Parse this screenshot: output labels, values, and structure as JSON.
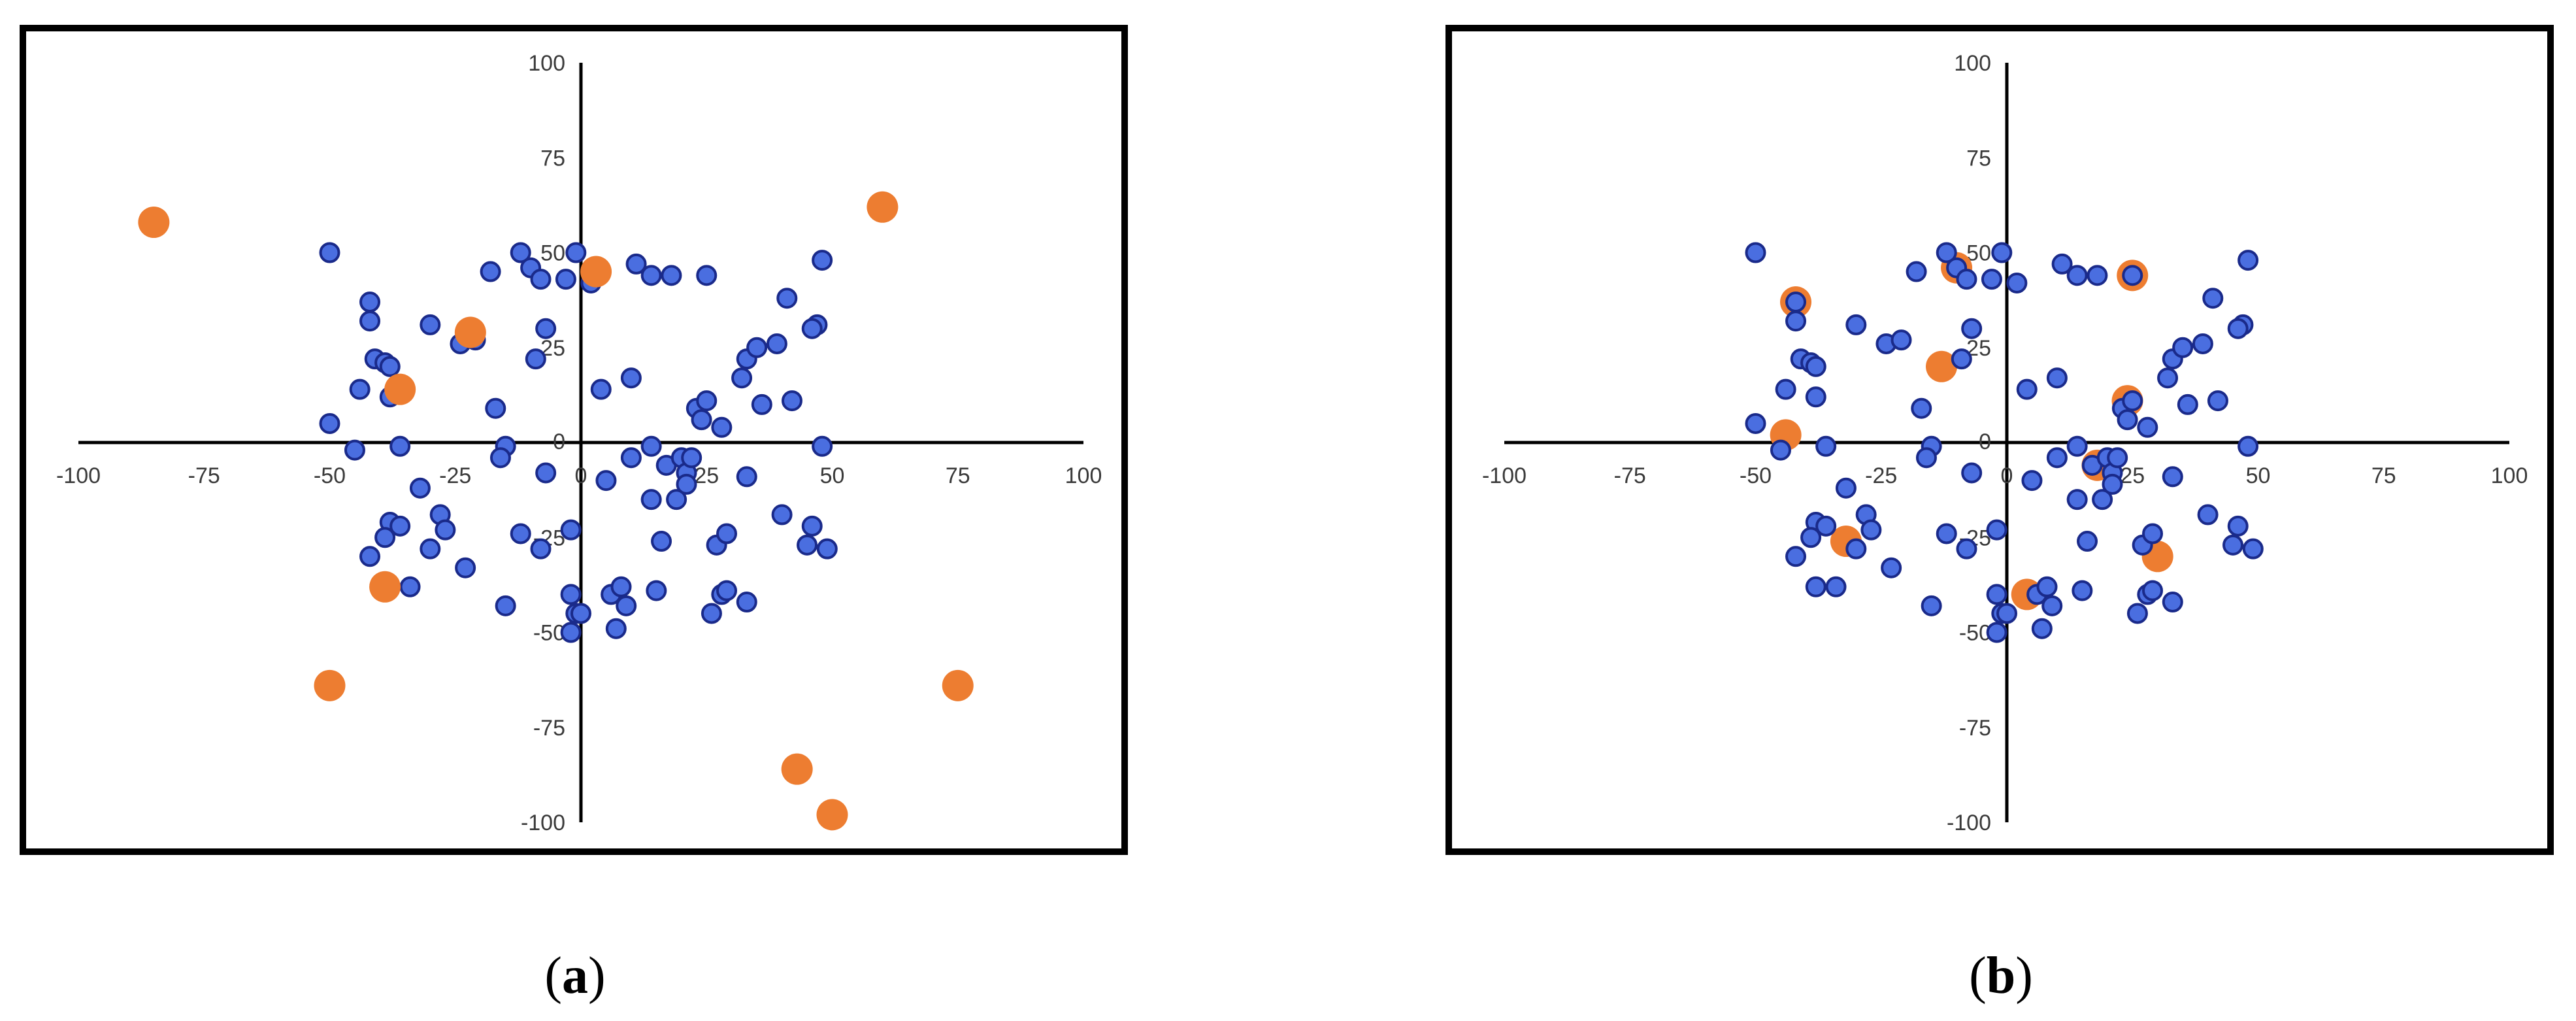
{
  "colors": {
    "blue_fill": "#4a6ee0",
    "blue_stroke": "#1a2a8a",
    "orange": "#ed7d31",
    "axis": "#000000"
  },
  "captions": {
    "a_open": "(",
    "a_letter": "a",
    "a_close": ")",
    "b_open": "(",
    "b_letter": "b",
    "b_close": ")"
  },
  "chart_data": [
    {
      "type": "scatter",
      "title": "",
      "xlabel": "",
      "ylabel": "",
      "xlim": [
        -100,
        100
      ],
      "ylim": [
        -100,
        100
      ],
      "x_ticks": [
        "-100",
        "-75",
        "-50",
        "-25",
        "0",
        "25",
        "50",
        "75",
        "100"
      ],
      "y_ticks": [
        "100",
        "75",
        "50",
        "25",
        "0",
        "-25",
        "-50",
        "-75",
        "-100"
      ],
      "grid": false,
      "series": [
        {
          "points": [
            [
              -50,
              50
            ],
            [
              -42,
              37
            ],
            [
              -42,
              32
            ],
            [
              -41,
              22
            ],
            [
              -39,
              21
            ],
            [
              -38,
              20
            ],
            [
              -44,
              14
            ],
            [
              -38,
              12
            ],
            [
              -36,
              -1
            ],
            [
              -50,
              5
            ],
            [
              -45,
              -2
            ],
            [
              -30,
              31
            ],
            [
              -24,
              26
            ],
            [
              -21,
              27
            ],
            [
              -18,
              45
            ],
            [
              -12,
              50
            ],
            [
              -10,
              46
            ],
            [
              -8,
              43
            ],
            [
              -7,
              30
            ],
            [
              -9,
              22
            ],
            [
              -17,
              9
            ],
            [
              -15,
              -1
            ],
            [
              -16,
              -4
            ],
            [
              -32,
              -12
            ],
            [
              -38,
              -21
            ],
            [
              -36,
              -22
            ],
            [
              -39,
              -25
            ],
            [
              -42,
              -30
            ],
            [
              -28,
              -19
            ],
            [
              -27,
              -23
            ],
            [
              -30,
              -28
            ],
            [
              -23,
              -33
            ],
            [
              -12,
              -24
            ],
            [
              -8,
              -28
            ],
            [
              -38,
              -38
            ],
            [
              -34,
              -38
            ],
            [
              -15,
              -43
            ],
            [
              -3,
              43
            ],
            [
              -1,
              50
            ],
            [
              2,
              42
            ],
            [
              11,
              47
            ],
            [
              14,
              44
            ],
            [
              18,
              44
            ],
            [
              25,
              44
            ],
            [
              4,
              14
            ],
            [
              10,
              17
            ],
            [
              -7,
              -8
            ],
            [
              5,
              -10
            ],
            [
              10,
              -4
            ],
            [
              14,
              -1
            ],
            [
              14,
              -15
            ],
            [
              17,
              -6
            ],
            [
              19,
              -15
            ],
            [
              20,
              -4
            ],
            [
              21,
              -8
            ],
            [
              22,
              -4
            ],
            [
              21,
              -11
            ],
            [
              23,
              9
            ],
            [
              25,
              11
            ],
            [
              24,
              6
            ],
            [
              28,
              4
            ],
            [
              16,
              -26
            ],
            [
              27,
              -27
            ],
            [
              29,
              -24
            ],
            [
              33,
              -9
            ],
            [
              32,
              17
            ],
            [
              33,
              22
            ],
            [
              35,
              25
            ],
            [
              36,
              10
            ],
            [
              39,
              26
            ],
            [
              40,
              -19
            ],
            [
              42,
              11
            ],
            [
              41,
              38
            ],
            [
              47,
              31
            ],
            [
              46,
              30
            ],
            [
              48,
              48
            ],
            [
              48,
              -1
            ],
            [
              45,
              -27
            ],
            [
              46,
              -22
            ],
            [
              49,
              -28
            ],
            [
              -2,
              -23
            ],
            [
              -2,
              -40
            ],
            [
              -1,
              -45
            ],
            [
              0,
              -45
            ],
            [
              -2,
              -50
            ],
            [
              6,
              -40
            ],
            [
              7,
              -49
            ],
            [
              8,
              -38
            ],
            [
              9,
              -43
            ],
            [
              15,
              -39
            ],
            [
              26,
              -45
            ],
            [
              28,
              -40
            ],
            [
              29,
              -39
            ],
            [
              33,
              -42
            ]
          ]
        },
        {
          "points": [
            [
              -85,
              58
            ],
            [
              3,
              45
            ],
            [
              -22,
              29
            ],
            [
              -36,
              14
            ],
            [
              60,
              62
            ],
            [
              -39,
              -38
            ],
            [
              -50,
              -64
            ],
            [
              75,
              -64
            ],
            [
              43,
              -86
            ],
            [
              50,
              -98
            ]
          ]
        }
      ]
    },
    {
      "type": "scatter",
      "title": "",
      "xlabel": "",
      "ylabel": "",
      "xlim": [
        -100,
        100
      ],
      "ylim": [
        -100,
        100
      ],
      "x_ticks": [
        "-100",
        "-75",
        "-50",
        "-25",
        "0",
        "25",
        "50",
        "75",
        "100"
      ],
      "y_ticks": [
        "100",
        "75",
        "50",
        "25",
        "0",
        "-25",
        "-50",
        "-75",
        "-100"
      ],
      "grid": false,
      "series": [
        {
          "points": [
            [
              -42,
              37
            ],
            [
              -10,
              46
            ],
            [
              25,
              44
            ],
            [
              -13,
              20
            ],
            [
              -44,
              2
            ],
            [
              24,
              11
            ],
            [
              18,
              -6
            ],
            [
              -32,
              -26
            ],
            [
              30,
              -30
            ],
            [
              4,
              -40
            ]
          ]
        },
        {
          "points": [
            [
              -50,
              50
            ],
            [
              -42,
              37
            ],
            [
              -42,
              32
            ],
            [
              -41,
              22
            ],
            [
              -39,
              21
            ],
            [
              -38,
              20
            ],
            [
              -44,
              14
            ],
            [
              -38,
              12
            ],
            [
              -36,
              -1
            ],
            [
              -50,
              5
            ],
            [
              -45,
              -2
            ],
            [
              -30,
              31
            ],
            [
              -24,
              26
            ],
            [
              -21,
              27
            ],
            [
              -18,
              45
            ],
            [
              -12,
              50
            ],
            [
              -10,
              46
            ],
            [
              -8,
              43
            ],
            [
              -7,
              30
            ],
            [
              -9,
              22
            ],
            [
              -17,
              9
            ],
            [
              -15,
              -1
            ],
            [
              -16,
              -4
            ],
            [
              -32,
              -12
            ],
            [
              -38,
              -21
            ],
            [
              -36,
              -22
            ],
            [
              -39,
              -25
            ],
            [
              -42,
              -30
            ],
            [
              -28,
              -19
            ],
            [
              -27,
              -23
            ],
            [
              -30,
              -28
            ],
            [
              -23,
              -33
            ],
            [
              -12,
              -24
            ],
            [
              -8,
              -28
            ],
            [
              -38,
              -38
            ],
            [
              -34,
              -38
            ],
            [
              -15,
              -43
            ],
            [
              -3,
              43
            ],
            [
              -1,
              50
            ],
            [
              2,
              42
            ],
            [
              11,
              47
            ],
            [
              14,
              44
            ],
            [
              18,
              44
            ],
            [
              25,
              44
            ],
            [
              4,
              14
            ],
            [
              10,
              17
            ],
            [
              -7,
              -8
            ],
            [
              5,
              -10
            ],
            [
              10,
              -4
            ],
            [
              14,
              -1
            ],
            [
              14,
              -15
            ],
            [
              17,
              -6
            ],
            [
              19,
              -15
            ],
            [
              20,
              -4
            ],
            [
              21,
              -8
            ],
            [
              22,
              -4
            ],
            [
              21,
              -11
            ],
            [
              23,
              9
            ],
            [
              25,
              11
            ],
            [
              24,
              6
            ],
            [
              28,
              4
            ],
            [
              16,
              -26
            ],
            [
              27,
              -27
            ],
            [
              29,
              -24
            ],
            [
              33,
              -9
            ],
            [
              32,
              17
            ],
            [
              33,
              22
            ],
            [
              35,
              25
            ],
            [
              36,
              10
            ],
            [
              39,
              26
            ],
            [
              40,
              -19
            ],
            [
              42,
              11
            ],
            [
              41,
              38
            ],
            [
              47,
              31
            ],
            [
              46,
              30
            ],
            [
              48,
              48
            ],
            [
              48,
              -1
            ],
            [
              45,
              -27
            ],
            [
              46,
              -22
            ],
            [
              49,
              -28
            ],
            [
              -2,
              -23
            ],
            [
              -2,
              -40
            ],
            [
              -1,
              -45
            ],
            [
              0,
              -45
            ],
            [
              -2,
              -50
            ],
            [
              6,
              -40
            ],
            [
              7,
              -49
            ],
            [
              8,
              -38
            ],
            [
              9,
              -43
            ],
            [
              15,
              -39
            ],
            [
              26,
              -45
            ],
            [
              28,
              -40
            ],
            [
              29,
              -39
            ],
            [
              33,
              -42
            ]
          ]
        }
      ]
    }
  ]
}
